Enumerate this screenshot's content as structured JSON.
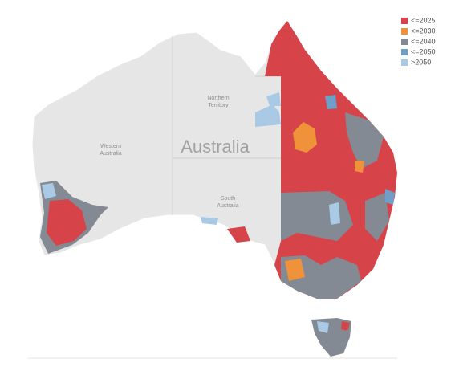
{
  "map": {
    "title": "Australia",
    "regions": [
      {
        "lines": [
          "Western",
          "Australia"
        ]
      },
      {
        "lines": [
          "Northern",
          "Territory"
        ]
      },
      {
        "lines": [
          "South",
          "Australia"
        ]
      }
    ],
    "legend": [
      {
        "label": "<=2025",
        "color": "#d6444a"
      },
      {
        "label": "<=2030",
        "color": "#f0923a"
      },
      {
        "label": "<=2040",
        "color": "#838a94"
      },
      {
        "label": "<=2050",
        "color": "#6f9ec7"
      },
      {
        "label": ">2050",
        "color": "#a9c9e4"
      }
    ]
  }
}
